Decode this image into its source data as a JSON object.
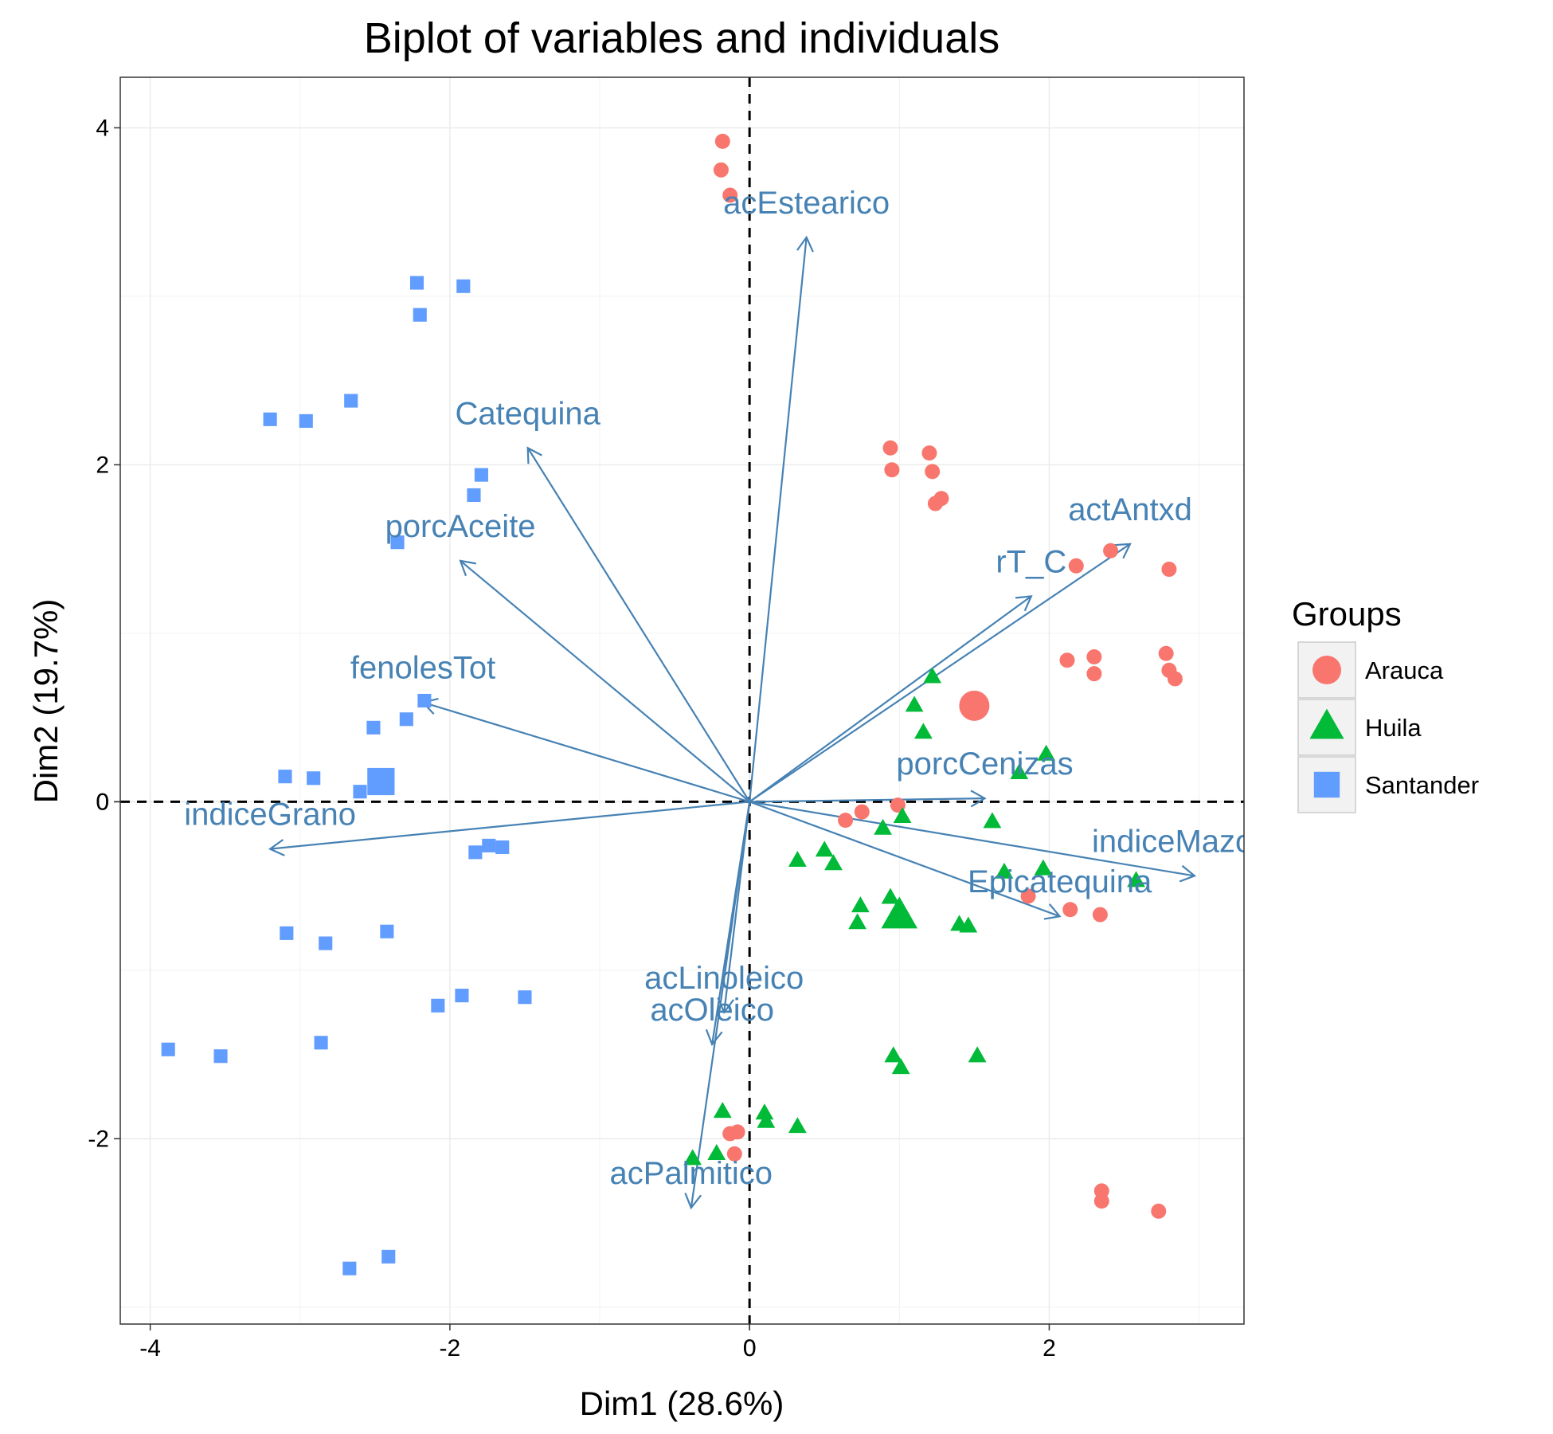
{
  "chart_data": {
    "type": "scatter",
    "title": "Biplot of variables and individuals",
    "xlabel": "Dim1 (28.6%)",
    "ylabel": "Dim2 (19.7%)",
    "xlim": [
      -4.2,
      3.3
    ],
    "ylim": [
      -3.1,
      4.3
    ],
    "xticks": [
      -4,
      -2,
      0,
      2
    ],
    "yticks": [
      -2,
      0,
      2,
      4
    ],
    "xtick_labels": [
      "-4",
      "-2",
      "0",
      "2"
    ],
    "ytick_labels": [
      "-2",
      "0",
      "2",
      "4"
    ],
    "grid": true,
    "reference_lines": {
      "x": 0,
      "y": 0,
      "style": "dashed"
    },
    "legend": {
      "title": "Groups",
      "placement": "right"
    },
    "series": [
      {
        "name": "Arauca",
        "color": "#f8766d",
        "shape": "circle",
        "points": [
          [
            -0.18,
            3.92
          ],
          [
            -0.19,
            3.75
          ],
          [
            -0.13,
            3.6
          ],
          [
            0.94,
            2.1
          ],
          [
            0.95,
            1.97
          ],
          [
            1.2,
            2.07
          ],
          [
            1.22,
            1.96
          ],
          [
            1.24,
            1.77
          ],
          [
            1.28,
            1.8
          ],
          [
            2.18,
            1.4
          ],
          [
            2.41,
            1.49
          ],
          [
            2.8,
            1.38
          ],
          [
            2.12,
            0.84
          ],
          [
            2.3,
            0.86
          ],
          [
            2.3,
            0.76
          ],
          [
            2.78,
            0.88
          ],
          [
            2.8,
            0.78
          ],
          [
            2.84,
            0.73
          ],
          [
            0.99,
            -0.02
          ],
          [
            0.75,
            -0.06
          ],
          [
            0.64,
            -0.11
          ],
          [
            1.86,
            -0.56
          ],
          [
            2.14,
            -0.64
          ],
          [
            2.34,
            -0.67
          ],
          [
            2.35,
            -2.31
          ],
          [
            2.35,
            -2.37
          ],
          [
            2.73,
            -2.43
          ],
          [
            -0.13,
            -1.97
          ],
          [
            -0.08,
            -1.96
          ],
          [
            -0.1,
            -2.09
          ]
        ],
        "centroid": [
          1.5,
          0.57
        ]
      },
      {
        "name": "Huila",
        "color": "#00ba38",
        "shape": "triangle",
        "points": [
          [
            1.22,
            0.74
          ],
          [
            1.1,
            0.57
          ],
          [
            1.16,
            0.41
          ],
          [
            1.98,
            0.28
          ],
          [
            1.8,
            0.17
          ],
          [
            1.02,
            -0.09
          ],
          [
            1.62,
            -0.12
          ],
          [
            0.89,
            -0.16
          ],
          [
            0.32,
            -0.35
          ],
          [
            0.5,
            -0.29
          ],
          [
            0.56,
            -0.37
          ],
          [
            0.94,
            -0.57
          ],
          [
            1.7,
            -0.42
          ],
          [
            1.96,
            -0.4
          ],
          [
            2.58,
            -0.47
          ],
          [
            0.74,
            -0.62
          ],
          [
            0.72,
            -0.72
          ],
          [
            1.4,
            -0.73
          ],
          [
            1.46,
            -0.74
          ],
          [
            0.96,
            -1.51
          ],
          [
            1.01,
            -1.58
          ],
          [
            1.52,
            -1.51
          ],
          [
            -0.18,
            -1.84
          ],
          [
            0.1,
            -1.85
          ],
          [
            0.11,
            -1.9
          ],
          [
            0.32,
            -1.93
          ],
          [
            -0.38,
            -2.12
          ],
          [
            -0.22,
            -2.09
          ]
        ],
        "centroid": [
          1.0,
          -0.68
        ]
      },
      {
        "name": "Santander",
        "color": "#619cff",
        "shape": "square",
        "points": [
          [
            -2.22,
            3.08
          ],
          [
            -1.91,
            3.06
          ],
          [
            -2.2,
            2.89
          ],
          [
            -2.66,
            2.38
          ],
          [
            -3.2,
            2.27
          ],
          [
            -2.96,
            2.26
          ],
          [
            -1.79,
            1.94
          ],
          [
            -1.84,
            1.82
          ],
          [
            -2.35,
            1.54
          ],
          [
            -2.17,
            0.6
          ],
          [
            -2.29,
            0.49
          ],
          [
            -2.51,
            0.44
          ],
          [
            -3.1,
            0.15
          ],
          [
            -2.91,
            0.14
          ],
          [
            -2.6,
            0.06
          ],
          [
            -1.83,
            -0.3
          ],
          [
            -1.74,
            -0.26
          ],
          [
            -1.65,
            -0.27
          ],
          [
            -3.09,
            -0.78
          ],
          [
            -2.83,
            -0.84
          ],
          [
            -2.42,
            -0.77
          ],
          [
            -2.08,
            -1.21
          ],
          [
            -1.92,
            -1.15
          ],
          [
            -1.5,
            -1.16
          ],
          [
            -2.86,
            -1.43
          ],
          [
            -3.88,
            -1.47
          ],
          [
            -3.53,
            -1.51
          ],
          [
            -2.67,
            -2.77
          ],
          [
            -2.41,
            -2.7
          ]
        ],
        "centroid": [
          -2.46,
          0.12
        ]
      }
    ],
    "variables": [
      {
        "name": "acEstearico",
        "x": 0.38,
        "y": 3.35
      },
      {
        "name": "Catequina",
        "x": -1.48,
        "y": 2.1
      },
      {
        "name": "porcAceite",
        "x": -1.93,
        "y": 1.43
      },
      {
        "name": "actAntxd",
        "x": 2.54,
        "y": 1.53
      },
      {
        "name": "rT_C",
        "x": 1.88,
        "y": 1.22
      },
      {
        "name": "fenolesTot",
        "x": -2.18,
        "y": 0.59
      },
      {
        "name": "porcCenizas",
        "x": 1.57,
        "y": 0.02
      },
      {
        "name": "indiceGrano",
        "x": -3.2,
        "y": -0.28
      },
      {
        "name": "indiceMazorca",
        "x": 2.97,
        "y": -0.44
      },
      {
        "name": "Epicatequina",
        "x": 2.07,
        "y": -0.68
      },
      {
        "name": "acLinoleico",
        "x": -0.17,
        "y": -1.25
      },
      {
        "name": "acOleico",
        "x": -0.25,
        "y": -1.44
      },
      {
        "name": "acPalmitico",
        "x": -0.39,
        "y": -2.41
      }
    ]
  }
}
